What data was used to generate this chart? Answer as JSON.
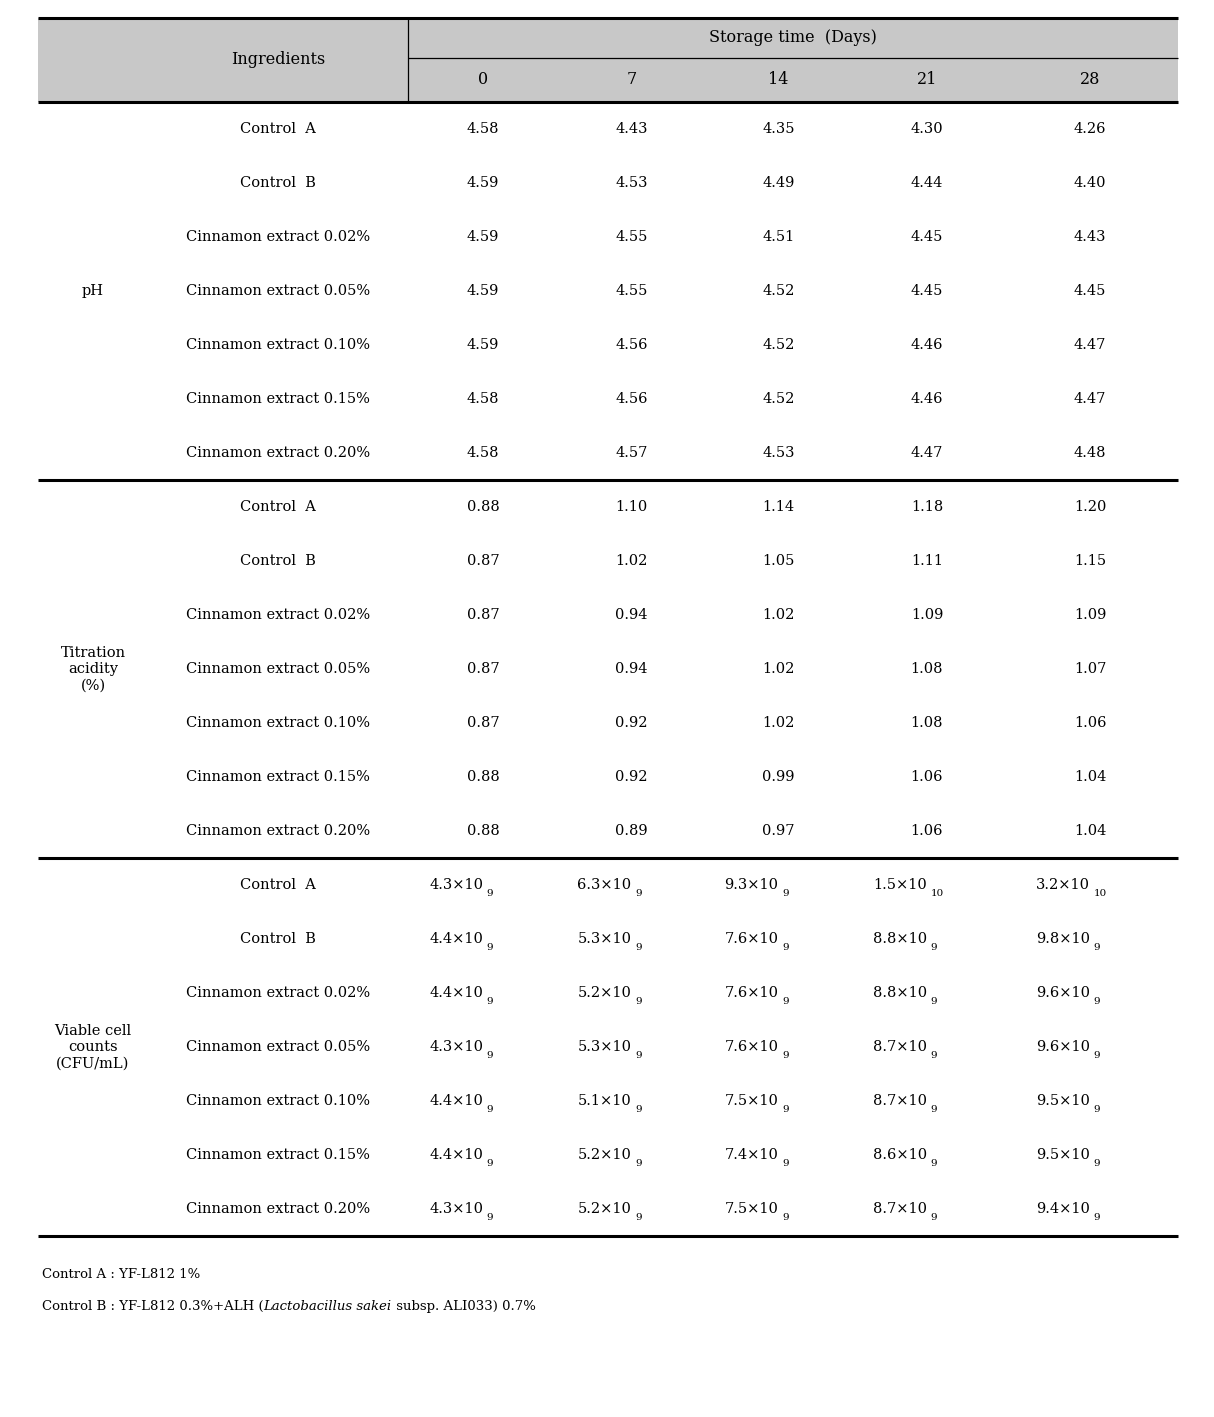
{
  "sections": [
    {
      "row_label": "pH",
      "rows": [
        {
          "ingredient": "Control  A",
          "values": [
            "4.58",
            "4.43",
            "4.35",
            "4.30",
            "4.26"
          ]
        },
        {
          "ingredient": "Control  B",
          "values": [
            "4.59",
            "4.53",
            "4.49",
            "4.44",
            "4.40"
          ]
        },
        {
          "ingredient": "Cinnamon extract 0.02%",
          "values": [
            "4.59",
            "4.55",
            "4.51",
            "4.45",
            "4.43"
          ]
        },
        {
          "ingredient": "Cinnamon extract 0.05%",
          "values": [
            "4.59",
            "4.55",
            "4.52",
            "4.45",
            "4.45"
          ]
        },
        {
          "ingredient": "Cinnamon extract 0.10%",
          "values": [
            "4.59",
            "4.56",
            "4.52",
            "4.46",
            "4.47"
          ]
        },
        {
          "ingredient": "Cinnamon extract 0.15%",
          "values": [
            "4.58",
            "4.56",
            "4.52",
            "4.46",
            "4.47"
          ]
        },
        {
          "ingredient": "Cinnamon extract 0.20%",
          "values": [
            "4.58",
            "4.57",
            "4.53",
            "4.47",
            "4.48"
          ]
        }
      ]
    },
    {
      "row_label": "Titration\nacidity\n(%)",
      "rows": [
        {
          "ingredient": "Control  A",
          "values": [
            "0.88",
            "1.10",
            "1.14",
            "1.18",
            "1.20"
          ]
        },
        {
          "ingredient": "Control  B",
          "values": [
            "0.87",
            "1.02",
            "1.05",
            "1.11",
            "1.15"
          ]
        },
        {
          "ingredient": "Cinnamon extract 0.02%",
          "values": [
            "0.87",
            "0.94",
            "1.02",
            "1.09",
            "1.09"
          ]
        },
        {
          "ingredient": "Cinnamon extract 0.05%",
          "values": [
            "0.87",
            "0.94",
            "1.02",
            "1.08",
            "1.07"
          ]
        },
        {
          "ingredient": "Cinnamon extract 0.10%",
          "values": [
            "0.87",
            "0.92",
            "1.02",
            "1.08",
            "1.06"
          ]
        },
        {
          "ingredient": "Cinnamon extract 0.15%",
          "values": [
            "0.88",
            "0.92",
            "0.99",
            "1.06",
            "1.04"
          ]
        },
        {
          "ingredient": "Cinnamon extract 0.20%",
          "values": [
            "0.88",
            "0.89",
            "0.97",
            "1.06",
            "1.04"
          ]
        }
      ]
    },
    {
      "row_label": "Viable cell\ncounts\n(CFU/mL)",
      "rows": [
        {
          "ingredient": "Control  A",
          "coeff": [
            "4.3",
            "6.3",
            "9.3",
            "1.5",
            "3.2"
          ],
          "exp": [
            "9",
            "9",
            "9",
            "10",
            "10"
          ]
        },
        {
          "ingredient": "Control  B",
          "coeff": [
            "4.4",
            "5.3",
            "7.6",
            "8.8",
            "9.8"
          ],
          "exp": [
            "9",
            "9",
            "9",
            "9",
            "9"
          ]
        },
        {
          "ingredient": "Cinnamon extract 0.02%",
          "coeff": [
            "4.4",
            "5.2",
            "7.6",
            "8.8",
            "9.6"
          ],
          "exp": [
            "9",
            "9",
            "9",
            "9",
            "9"
          ]
        },
        {
          "ingredient": "Cinnamon extract 0.05%",
          "coeff": [
            "4.3",
            "5.3",
            "7.6",
            "8.7",
            "9.6"
          ],
          "exp": [
            "9",
            "9",
            "9",
            "9",
            "9"
          ]
        },
        {
          "ingredient": "Cinnamon extract 0.10%",
          "coeff": [
            "4.4",
            "5.1",
            "7.5",
            "8.7",
            "9.5"
          ],
          "exp": [
            "9",
            "9",
            "9",
            "9",
            "9"
          ]
        },
        {
          "ingredient": "Cinnamon extract 0.15%",
          "coeff": [
            "4.4",
            "5.2",
            "7.4",
            "8.6",
            "9.5"
          ],
          "exp": [
            "9",
            "9",
            "9",
            "9",
            "9"
          ]
        },
        {
          "ingredient": "Cinnamon extract 0.20%",
          "coeff": [
            "4.3",
            "5.2",
            "7.5",
            "8.7",
            "9.4"
          ],
          "exp": [
            "9",
            "9",
            "9",
            "9",
            "9"
          ]
        }
      ]
    }
  ],
  "footer_part1": "Control A : YF-L812 1%",
  "footer_p1": "Control B : YF-L812 0.3%+ALH (",
  "footer_p2": "Lactobacillus sakei",
  "footer_p3": " subsp. ALI033) 0.7%",
  "bg_color_header": "#c8c8c8",
  "bg_color_white": "#ffffff",
  "line_color": "#000000",
  "text_color": "#000000",
  "font_size_header": 11.5,
  "font_size_body": 10.5,
  "font_size_footer": 9.5
}
